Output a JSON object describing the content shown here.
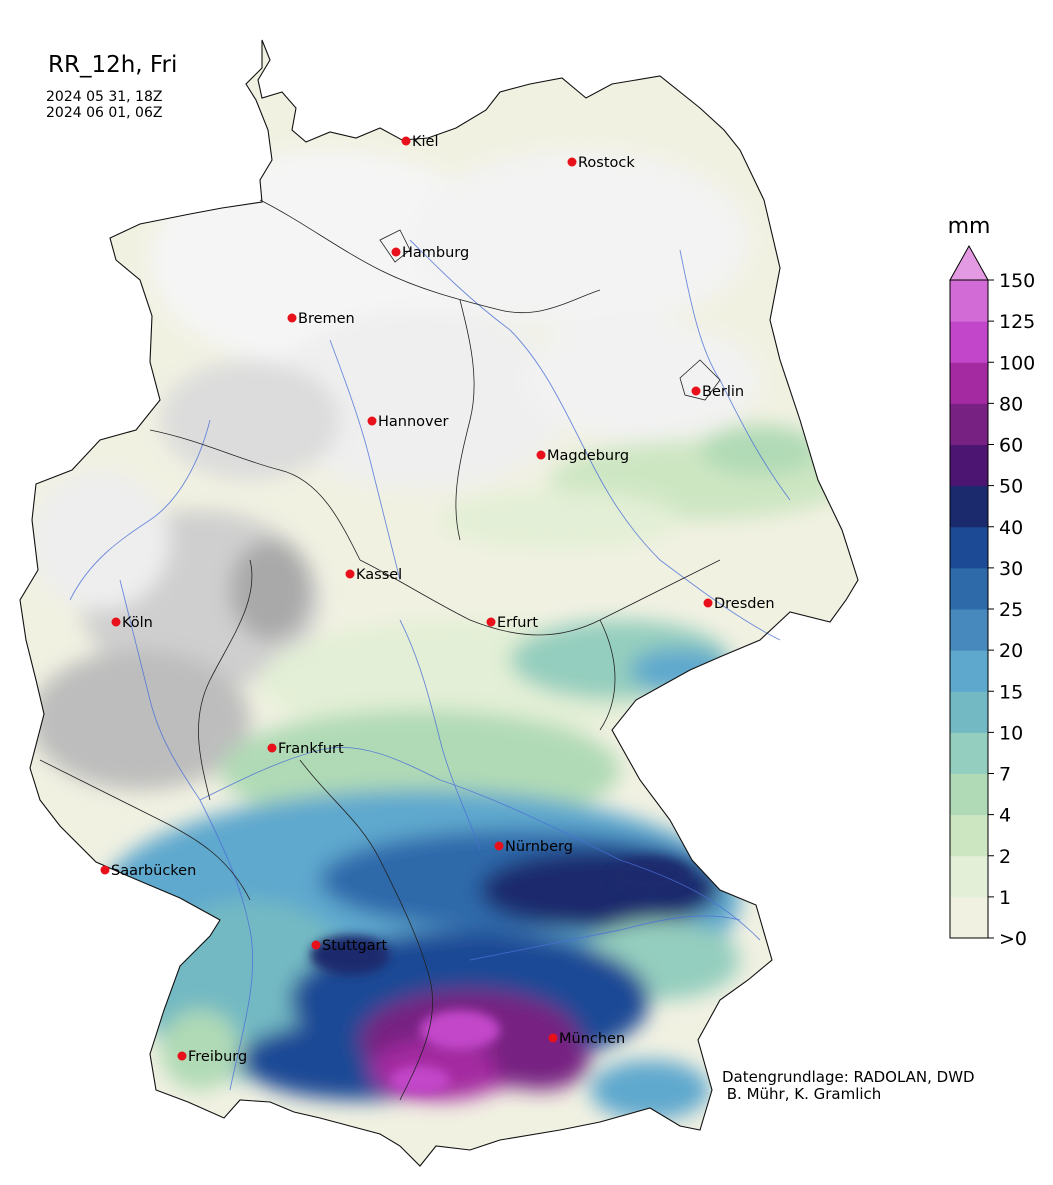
{
  "header": {
    "title": "RR_12h, Fri",
    "start": "2024 05 31, 18Z",
    "end": "2024 06 01, 06Z"
  },
  "colorbar": {
    "unit": "mm",
    "ticks": [
      ">0",
      "1",
      "2",
      "4",
      "7",
      "10",
      "15",
      "20",
      "25",
      "30",
      "40",
      "50",
      "60",
      "80",
      "100",
      "125",
      "150"
    ],
    "colors": [
      "#f1f1e2",
      "#e3efd6",
      "#cde6c2",
      "#b0dab5",
      "#94cebe",
      "#73b9c3",
      "#5ea8ce",
      "#4788bd",
      "#2e69aa",
      "#1d4a95",
      "#1a2a6d",
      "#4b1571",
      "#772282",
      "#a42aa1",
      "#c246c9",
      "#d26bd6",
      "#e39ae3"
    ]
  },
  "cities": [
    {
      "name": "Kiel",
      "color": "#e8101a"
    },
    {
      "name": "Rostock",
      "color": "#e8101a"
    },
    {
      "name": "Hamburg",
      "color": "#e8101a"
    },
    {
      "name": "Bremen",
      "color": "#e8101a"
    },
    {
      "name": "Berlin",
      "color": "#e8101a"
    },
    {
      "name": "Hannover",
      "color": "#e8101a"
    },
    {
      "name": "Magdeburg",
      "color": "#e8101a"
    },
    {
      "name": "Kassel",
      "color": "#e8101a"
    },
    {
      "name": "Dresden",
      "color": "#e8101a"
    },
    {
      "name": "Köln",
      "color": "#e8101a"
    },
    {
      "name": "Erfurt",
      "color": "#e8101a"
    },
    {
      "name": "Frankfurt",
      "color": "#e8101a"
    },
    {
      "name": "Nürnberg",
      "color": "#e8101a"
    },
    {
      "name": "Saarbücken",
      "color": "#e8101a"
    },
    {
      "name": "Stuttgart",
      "color": "#e8101a"
    },
    {
      "name": "München",
      "color": "#e8101a"
    },
    {
      "name": "Freiburg",
      "color": "#e8101a"
    }
  ],
  "credits": {
    "line1": "Datengrundlage: RADOLAN, DWD",
    "line2": " B. Mühr, K. Gramlich"
  }
}
